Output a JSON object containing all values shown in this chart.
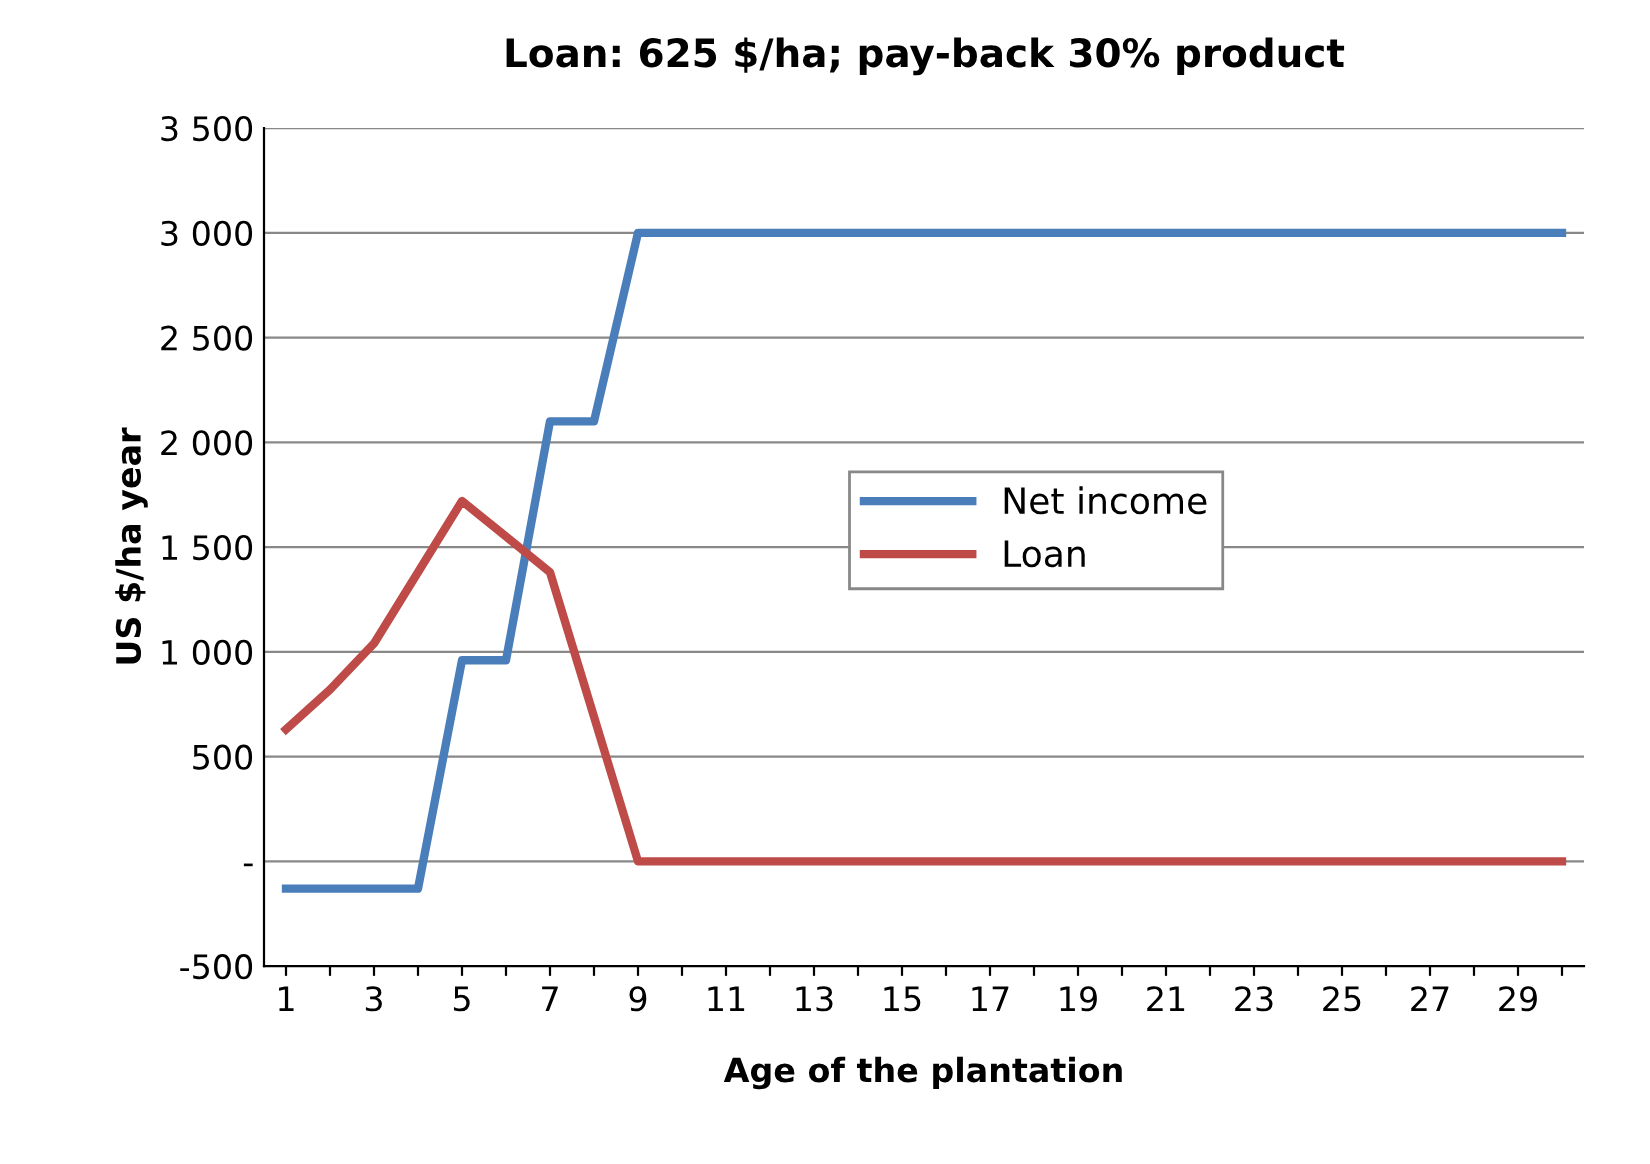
{
  "chart_data": {
    "type": "line",
    "title": "Loan: 625 $/ha; pay-back 30% product",
    "xlabel": "Age of the plantation",
    "ylabel": "US $/ha year",
    "categories": [
      "1",
      null,
      "3",
      null,
      "5",
      null,
      "7",
      null,
      "9",
      null,
      "11",
      null,
      "13",
      null,
      "15",
      null,
      "17",
      null,
      "19",
      null,
      "21",
      null,
      "23",
      null,
      "25",
      null,
      "27",
      null,
      "29",
      null
    ],
    "series": [
      {
        "name": "Net income",
        "color": "#4a7ebb",
        "values": [
          -130,
          -130,
          -130,
          -130,
          960,
          960,
          2100,
          2100,
          3000,
          3000,
          3000,
          3000,
          3000,
          3000,
          3000,
          3000,
          3000,
          3000,
          3000,
          3000,
          3000,
          3000,
          3000,
          3000,
          3000,
          3000,
          3000,
          3000,
          3000,
          3000
        ]
      },
      {
        "name": "Loan",
        "color": "#be4b48",
        "values": [
          630,
          820,
          1040,
          1380,
          1720,
          1550,
          1380,
          690,
          0,
          0,
          0,
          0,
          0,
          0,
          0,
          0,
          0,
          0,
          0,
          0,
          0,
          0,
          0,
          0,
          0,
          0,
          0,
          0,
          0,
          0
        ]
      }
    ],
    "ylim": [
      -500,
      3500
    ],
    "yticks": [
      -500,
      500,
      1000,
      1500,
      2000,
      2500,
      3000,
      3500,
      {
        "value": 0,
        "label": "-"
      }
    ],
    "grid": "y",
    "legend": "right",
    "marker": "none",
    "line_style": "solid"
  }
}
